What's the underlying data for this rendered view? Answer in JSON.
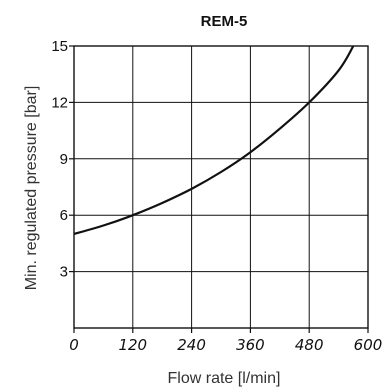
{
  "chart_data": {
    "type": "line",
    "title": "REM-5",
    "xlabel": "Flow rate [l/min]",
    "ylabel": "Min. regulated pressure [bar]",
    "xlim": [
      0,
      600
    ],
    "ylim": [
      0,
      15
    ],
    "xticks": [
      0,
      120,
      240,
      360,
      480,
      600
    ],
    "yticks": [
      3,
      6,
      9,
      12,
      15
    ],
    "grid": true,
    "series": [
      {
        "x": [
          0,
          60,
          120,
          180,
          240,
          300,
          360,
          420,
          480,
          540,
          570
        ],
        "y": [
          5.0,
          5.45,
          6.0,
          6.65,
          7.4,
          8.3,
          9.35,
          10.6,
          12.0,
          13.7,
          15.0
        ]
      }
    ]
  }
}
